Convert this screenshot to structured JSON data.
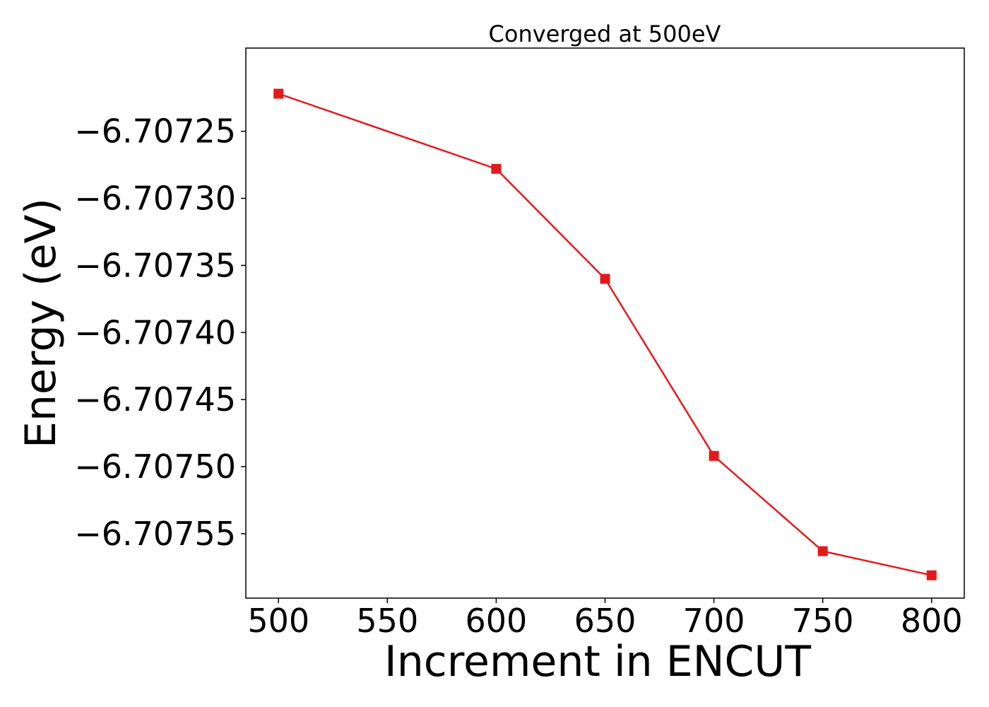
{
  "chart_data": {
    "type": "line",
    "title": "Converged at 500eV",
    "xlabel": "Increment in ENCUT",
    "ylabel": "Energy (eV)",
    "xlim": [
      485,
      815
    ],
    "ylim": [
      -6.707598,
      -6.707188
    ],
    "x_ticks": [
      500,
      550,
      600,
      650,
      700,
      750,
      800
    ],
    "x_tick_labels": [
      "500",
      "550",
      "600",
      "650",
      "700",
      "750",
      "800"
    ],
    "y_ticks": [
      -6.70725,
      -6.7073,
      -6.70735,
      -6.7074,
      -6.70745,
      -6.7075,
      -6.70755
    ],
    "y_tick_labels": [
      "−6.70725",
      "−6.70730",
      "−6.70735",
      "−6.70740",
      "−6.70745",
      "−6.70750",
      "−6.70755"
    ],
    "grid": false,
    "series": [
      {
        "color": "#e31a1c",
        "marker": "square",
        "x": [
          500,
          600,
          650,
          700,
          750,
          800
        ],
        "y": [
          -6.707222,
          -6.707278,
          -6.70736,
          -6.707492,
          -6.707563,
          -6.707581
        ]
      }
    ]
  }
}
